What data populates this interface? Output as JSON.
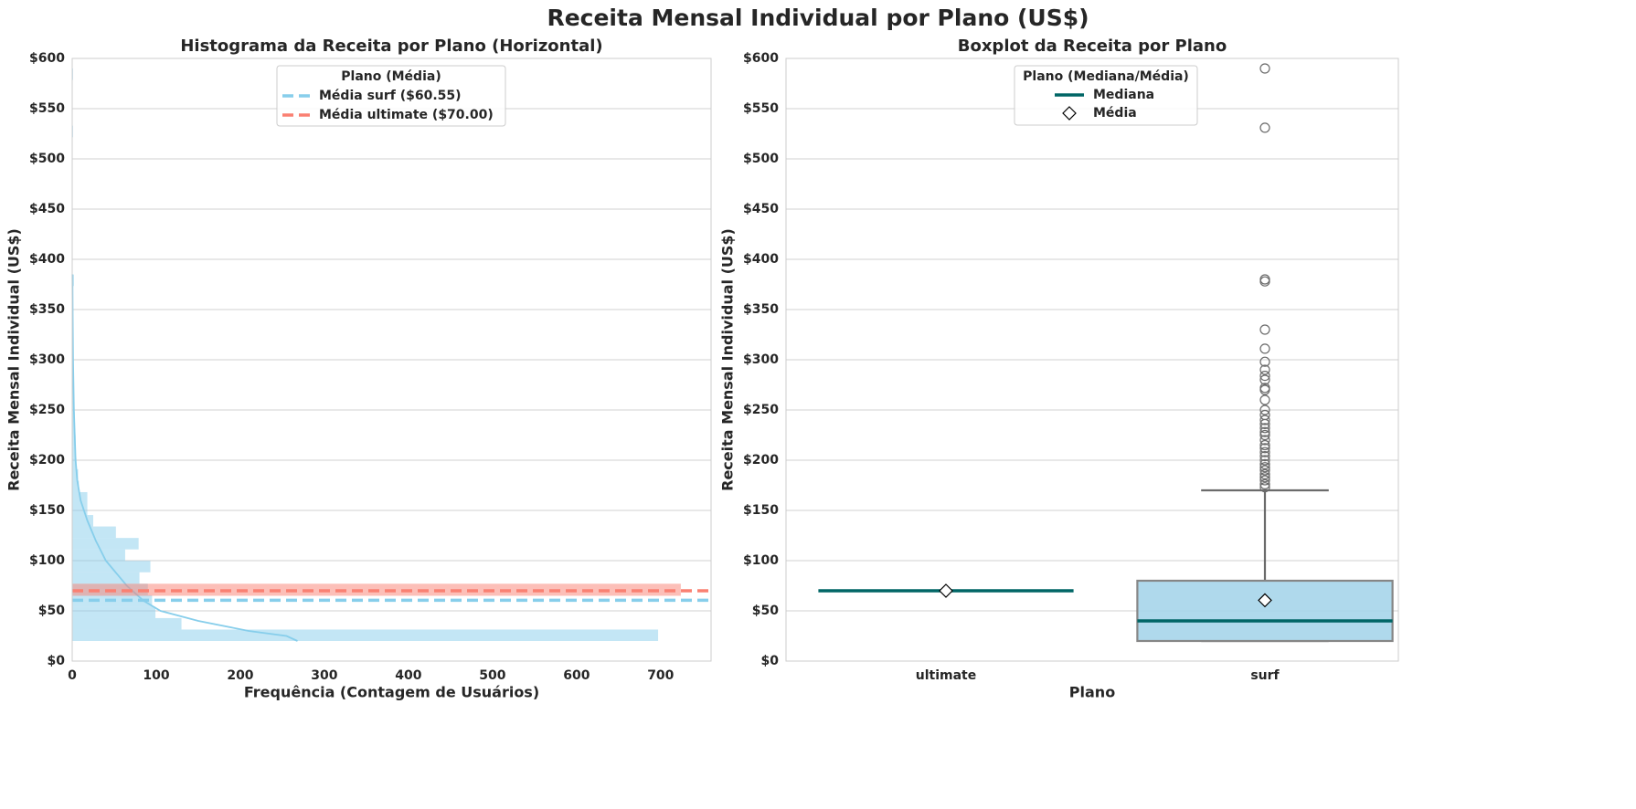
{
  "title": "Receita Mensal Individual por Plano (US$)",
  "chart_data": [
    {
      "type": "histogram",
      "orientation": "horizontal",
      "title": "Histograma da Receita por Plano (Horizontal)",
      "x_label": "Frequência (Contagem de Usuários)",
      "y_label": "Receita Mensal Individual (US$)",
      "xlim": [
        0,
        760
      ],
      "xticks": [
        0,
        100,
        200,
        300,
        400,
        500,
        600,
        700
      ],
      "ylim": [
        0,
        600
      ],
      "yticks": [
        {
          "value": 0,
          "label": "$0"
        },
        {
          "value": 50,
          "label": "$50"
        },
        {
          "value": 100,
          "label": "$100"
        },
        {
          "value": 150,
          "label": "$150"
        },
        {
          "value": 200,
          "label": "$200"
        },
        {
          "value": 250,
          "label": "$250"
        },
        {
          "value": 300,
          "label": "$300"
        },
        {
          "value": 350,
          "label": "$350"
        },
        {
          "value": 400,
          "label": "$400"
        },
        {
          "value": 450,
          "label": "$450"
        },
        {
          "value": 500,
          "label": "$500"
        },
        {
          "value": 550,
          "label": "$550"
        },
        {
          "value": 600,
          "label": "$600"
        }
      ],
      "grid": true,
      "legend": {
        "title": "Plano (Média)",
        "position": "upper center"
      },
      "series": [
        {
          "color": "#87ceeb",
          "bins": [
            20,
            31.4,
            42.8,
            54.2,
            65.6,
            77,
            88.4,
            99.8,
            111.2,
            122.6,
            134,
            145.4,
            156.8,
            168.2,
            179.6,
            191,
            202.4,
            213.8,
            225.2,
            236.6,
            248,
            259.4,
            270.8,
            282.2,
            293.6,
            305,
            316.4,
            327.8,
            339.2,
            350.6,
            362,
            373.4,
            384.8,
            396.2,
            407.6,
            419,
            430.4,
            441.8,
            453.2,
            464.6,
            476,
            487.4,
            498.8,
            510.2,
            521.6,
            533,
            544.4,
            555.8,
            567.2,
            578.6,
            590
          ],
          "counts": [
            697,
            130,
            99,
            95,
            90,
            80,
            93,
            63,
            79,
            52,
            25,
            18,
            18,
            8,
            7,
            5,
            4,
            4,
            3,
            3,
            2,
            1,
            2,
            1,
            1,
            1,
            1,
            1,
            0,
            0,
            0,
            2,
            0,
            0,
            0,
            0,
            0,
            0,
            0,
            0,
            0,
            0,
            0,
            0,
            1,
            0,
            0,
            0,
            0,
            1
          ],
          "kde": {
            "y": [
              20,
              25,
              30,
              40,
              50,
              60,
              75,
              90,
              100,
              120,
              140,
              160,
              180,
              200,
              250,
              300,
              350,
              385
            ],
            "x": [
              268,
              255,
              210,
              150,
              105,
              85,
              65,
              50,
              40,
              28,
              18,
              10,
              6,
              4,
              2,
              1,
              0.5,
              0.3
            ]
          }
        },
        {
          "color": "#fa8072",
          "bins": [
            65,
            77
          ],
          "counts": [
            724
          ]
        }
      ],
      "mean_lines": [
        {
          "label": "Média surf ($60.55)",
          "value": 60.55,
          "color": "#87ceeb"
        },
        {
          "label": "Média ultimate ($70.00)",
          "value": 70,
          "color": "#fa8072"
        }
      ]
    },
    {
      "type": "box",
      "title": "Boxplot da Receita por Plano",
      "x_label": "Plano",
      "y_label": "Receita Mensal Individual (US$)",
      "categories": [
        "ultimate",
        "surf"
      ],
      "ylim": [
        0,
        600
      ],
      "yticks": [
        {
          "value": 0,
          "label": "$0"
        },
        {
          "value": 50,
          "label": "$50"
        },
        {
          "value": 100,
          "label": "$100"
        },
        {
          "value": 150,
          "label": "$150"
        },
        {
          "value": 200,
          "label": "$200"
        },
        {
          "value": 250,
          "label": "$250"
        },
        {
          "value": 300,
          "label": "$300"
        },
        {
          "value": 350,
          "label": "$350"
        },
        {
          "value": 400,
          "label": "$400"
        },
        {
          "value": 450,
          "label": "$450"
        },
        {
          "value": 500,
          "label": "$500"
        },
        {
          "value": 550,
          "label": "$550"
        },
        {
          "value": 600,
          "label": "$600"
        }
      ],
      "grid": true,
      "legend": {
        "title": "Plano (Mediana/Média)",
        "entries": [
          "Mediana",
          "Média"
        ],
        "position": "upper center"
      },
      "box_color": "#a6d5ea",
      "median_color": "#006666",
      "boxes": [
        {
          "min": 70,
          "q1": 70,
          "median": 70,
          "q3": 70,
          "max": 70,
          "mean": 70,
          "outliers": []
        },
        {
          "min": 20,
          "q1": 20,
          "median": 40,
          "q3": 80,
          "max": 170,
          "mean": 60.55,
          "outliers": [
            590,
            531,
            380,
            378,
            330,
            311,
            298,
            290,
            284,
            280,
            272,
            270,
            260,
            250,
            245,
            240,
            236,
            232,
            228,
            225,
            220,
            215,
            212,
            208,
            204,
            200,
            196,
            193,
            190,
            186,
            183,
            180,
            176,
            173
          ]
        }
      ]
    }
  ]
}
